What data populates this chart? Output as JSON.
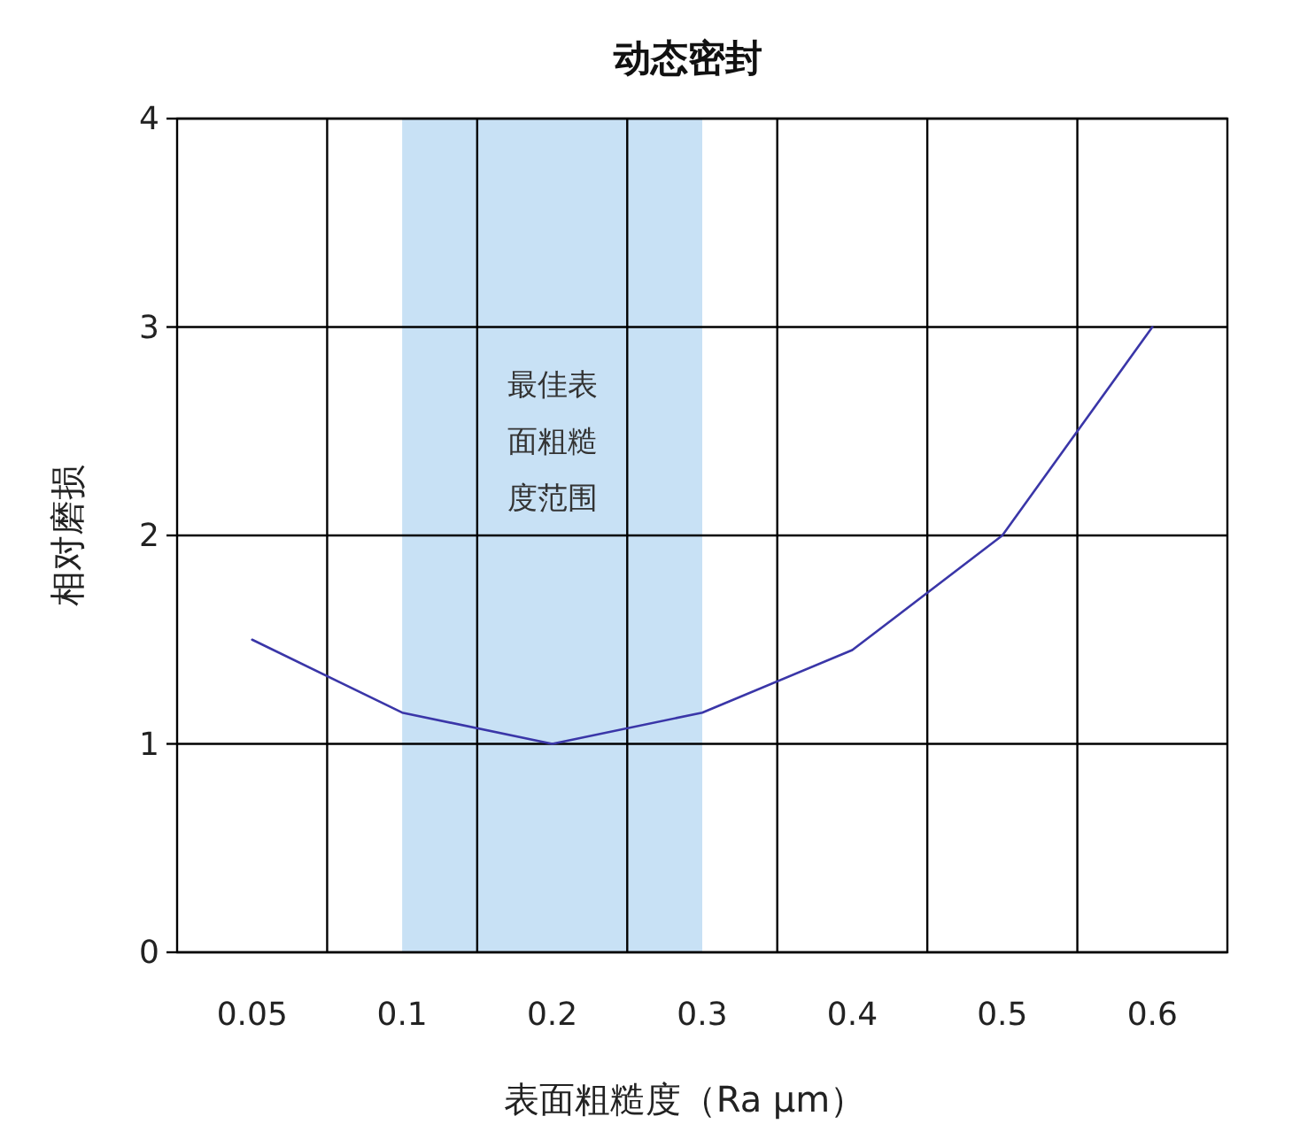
{
  "chart_data": {
    "type": "line",
    "title": "动态密封",
    "xlabel": "表面粗糙度（Ra μm）",
    "ylabel": "相对磨损",
    "categories": [
      "0.05",
      "0.1",
      "0.2",
      "0.3",
      "0.4",
      "0.5",
      "0.6"
    ],
    "series": [
      {
        "color": "#3a36a8",
        "values": [
          1.5,
          1.15,
          1.0,
          1.15,
          1.45,
          2.0,
          3.0
        ]
      }
    ],
    "ylim": [
      0,
      4
    ],
    "yticks": [
      0,
      1,
      2,
      3,
      4
    ],
    "grid": true,
    "bands": [
      {
        "axis": "x",
        "from": "0.1",
        "to": "0.3",
        "label": "最佳表面粗糙度范围",
        "color": "#c8e1f5"
      }
    ]
  }
}
